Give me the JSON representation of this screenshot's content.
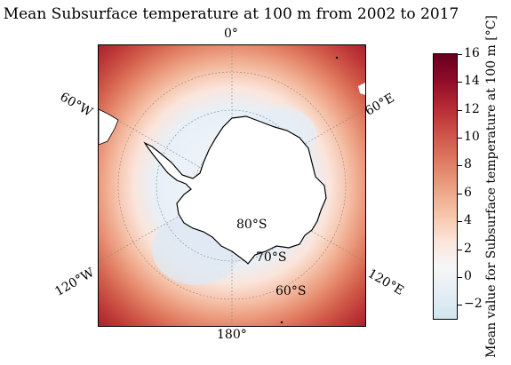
{
  "title": "Mean Subsurface temperature at 100 m from 2002 to 2017",
  "map": {
    "longitude_labels": [
      "0°",
      "60°E",
      "120°E",
      "180°",
      "120°W",
      "60°W"
    ],
    "latitude_labels": [
      "80°S",
      "70°S",
      "60°S"
    ],
    "colormap": [
      "#f1f6fa",
      "#fae5dc",
      "#f6c6ae",
      "#eea588",
      "#e38367",
      "#d25d4b",
      "#bc3536",
      "#97142c",
      "#67001f"
    ],
    "land_color": "#ffffff",
    "ocean_low_color": "#dfe9f2"
  },
  "colorbar": {
    "label": "Mean value for Subsurface temperature at 100 m [°C]",
    "range": [
      -3,
      16
    ],
    "tick_labels": [
      "16",
      "14",
      "12",
      "10",
      "8",
      "6",
      "4",
      "2",
      "0",
      "−2"
    ],
    "tick_values": [
      16,
      14,
      12,
      10,
      8,
      6,
      4,
      2,
      0,
      -2
    ]
  }
}
